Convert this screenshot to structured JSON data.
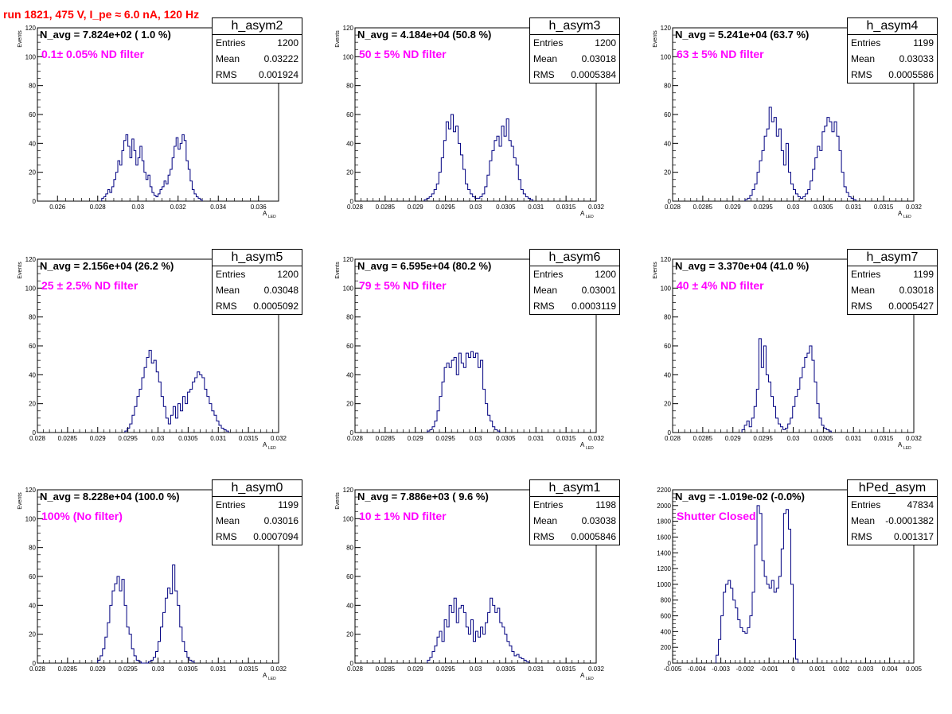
{
  "title": "run 1821,   475 V, I_pe ≈ 6.0 nA, 120 Hz",
  "colors": {
    "title": "#ff0000",
    "hist": "#000080",
    "filter_label": "#ff00ff"
  },
  "stats_labels": {
    "entries": "Entries",
    "mean": "Mean",
    "rms": "RMS"
  },
  "chart_data": [
    {
      "type": "histogram",
      "name": "h_asym2",
      "navg": "N_avg = 7.824e+02 ( 1.0 %)",
      "filter": "0.1± 0.05% ND filter",
      "stats": {
        "entries": "1200",
        "mean": "0.03222",
        "rms": "0.001924"
      },
      "xlabel": "A",
      "xlabel_sub": "LED",
      "ylabel": "Events",
      "xlim": [
        0.025,
        0.037
      ],
      "ylim": [
        0,
        120
      ],
      "xticks": [
        0.026,
        0.028,
        0.03,
        0.032,
        0.034,
        0.036
      ],
      "xtick_labels": [
        "0.026",
        "0.028",
        "0.03",
        "0.032",
        "0.034",
        "0.036"
      ],
      "yticks": [
        0,
        20,
        40,
        60,
        80,
        100,
        120
      ],
      "x0": 0.0282,
      "bin": 0.0001,
      "values": [
        2,
        3,
        5,
        8,
        6,
        10,
        15,
        20,
        28,
        25,
        35,
        42,
        46,
        38,
        30,
        43,
        35,
        25,
        30,
        38,
        28,
        20,
        15,
        18,
        10,
        6,
        4,
        3,
        5,
        8,
        10,
        14,
        12,
        18,
        22,
        30,
        38,
        44,
        36,
        40,
        46,
        42,
        28,
        22,
        14,
        8,
        5,
        3,
        2,
        1
      ]
    },
    {
      "type": "histogram",
      "name": "h_asym3",
      "navg": "N_avg = 4.184e+04 (50.8 %)",
      "filter": "50 ± 5% ND filter",
      "stats": {
        "entries": "1200",
        "mean": "0.03018",
        "rms": "0.0005384"
      },
      "xlabel": "A",
      "xlabel_sub": "LED",
      "ylabel": "Events",
      "xlim": [
        0.028,
        0.032
      ],
      "ylim": [
        0,
        120
      ],
      "xticks": [
        0.028,
        0.0285,
        0.029,
        0.0295,
        0.03,
        0.0305,
        0.031,
        0.0315,
        0.032
      ],
      "xtick_labels": [
        "0.028",
        "0.0285",
        "0.029",
        "0.0295",
        "0.03",
        "0.0305",
        "0.031",
        "0.0315",
        "0.032"
      ],
      "yticks": [
        0,
        20,
        40,
        60,
        80,
        100,
        120
      ],
      "x0": 0.02915,
      "bin": 4e-05,
      "values": [
        1,
        2,
        3,
        5,
        8,
        12,
        20,
        30,
        42,
        55,
        50,
        60,
        48,
        52,
        40,
        32,
        22,
        12,
        8,
        5,
        3,
        2,
        2,
        3,
        5,
        10,
        18,
        28,
        35,
        42,
        45,
        38,
        52,
        45,
        57,
        42,
        38,
        30,
        25,
        15,
        8,
        5,
        3,
        2,
        1
      ]
    },
    {
      "type": "histogram",
      "name": "h_asym4",
      "navg": "N_avg = 5.241e+04 (63.7 %)",
      "filter": "63 ± 5% ND filter",
      "stats": {
        "entries": "1199",
        "mean": "0.03033",
        "rms": "0.0005586"
      },
      "xlabel": "A",
      "xlabel_sub": "LED",
      "ylabel": "Events",
      "xlim": [
        0.028,
        0.032
      ],
      "ylim": [
        0,
        120
      ],
      "xticks": [
        0.028,
        0.0285,
        0.029,
        0.0295,
        0.03,
        0.0305,
        0.031,
        0.0315,
        0.032
      ],
      "xtick_labels": [
        "0.028",
        "0.0285",
        "0.029",
        "0.0295",
        "0.03",
        "0.0305",
        "0.031",
        "0.0315",
        "0.032"
      ],
      "yticks": [
        0,
        20,
        40,
        60,
        80,
        100,
        120
      ],
      "x0": 0.0292,
      "bin": 4e-05,
      "values": [
        1,
        2,
        4,
        8,
        12,
        20,
        28,
        35,
        45,
        50,
        65,
        55,
        58,
        45,
        50,
        35,
        25,
        40,
        20,
        12,
        8,
        5,
        3,
        2,
        3,
        5,
        8,
        14,
        22,
        30,
        38,
        35,
        48,
        52,
        58,
        55,
        48,
        55,
        45,
        35,
        20,
        10,
        6,
        3,
        2,
        1
      ]
    },
    {
      "type": "histogram",
      "name": "h_asym5",
      "navg": "N_avg = 2.156e+04 (26.2 %)",
      "filter": "25 ± 2.5% ND filter",
      "stats": {
        "entries": "1200",
        "mean": "0.03048",
        "rms": "0.0005092"
      },
      "xlabel": "A",
      "xlabel_sub": "LED",
      "ylabel": "Events",
      "xlim": [
        0.028,
        0.032
      ],
      "ylim": [
        0,
        120
      ],
      "xticks": [
        0.028,
        0.0285,
        0.029,
        0.0295,
        0.03,
        0.0305,
        0.031,
        0.0315,
        0.032
      ],
      "xtick_labels": [
        "0.028",
        "0.0285",
        "0.029",
        "0.0295",
        "0.03",
        "0.0305",
        "0.031",
        "0.0315",
        "0.032"
      ],
      "yticks": [
        0,
        20,
        40,
        60,
        80,
        100,
        120
      ],
      "x0": 0.02945,
      "bin": 4e-05,
      "values": [
        1,
        3,
        6,
        12,
        18,
        25,
        30,
        38,
        45,
        52,
        57,
        48,
        50,
        42,
        35,
        25,
        18,
        10,
        6,
        12,
        18,
        10,
        20,
        15,
        25,
        20,
        28,
        30,
        35,
        38,
        42,
        40,
        38,
        30,
        25,
        20,
        15,
        12,
        8,
        5,
        3,
        2,
        1
      ]
    },
    {
      "type": "histogram",
      "name": "h_asym6",
      "navg": "N_avg = 6.595e+04 (80.2 %)",
      "filter": "79 ± 5% ND filter",
      "stats": {
        "entries": "1200",
        "mean": "0.03001",
        "rms": "0.0003119"
      },
      "xlabel": "A",
      "xlabel_sub": "LED",
      "ylabel": "Events",
      "xlim": [
        0.028,
        0.032
      ],
      "ylim": [
        0,
        120
      ],
      "xticks": [
        0.028,
        0.0285,
        0.029,
        0.0295,
        0.03,
        0.0305,
        0.031,
        0.0315,
        0.032
      ],
      "xtick_labels": [
        "0.028",
        "0.0285",
        "0.029",
        "0.0295",
        "0.03",
        "0.0305",
        "0.031",
        "0.0315",
        "0.032"
      ],
      "yticks": [
        0,
        20,
        40,
        60,
        80,
        100,
        120
      ],
      "x0": 0.0292,
      "bin": 4e-05,
      "values": [
        1,
        2,
        4,
        8,
        15,
        25,
        35,
        45,
        48,
        45,
        50,
        52,
        40,
        55,
        48,
        45,
        55,
        52,
        56,
        52,
        55,
        45,
        50,
        30,
        20,
        12,
        8,
        4,
        2,
        1
      ]
    },
    {
      "type": "histogram",
      "name": "h_asym7",
      "navg": "N_avg = 3.370e+04 (41.0 %)",
      "filter": "40 ± 4% ND filter",
      "stats": {
        "entries": "1199",
        "mean": "0.03018",
        "rms": "0.0005427"
      },
      "xlabel": "A",
      "xlabel_sub": "LED",
      "ylabel": "Events",
      "xlim": [
        0.028,
        0.032
      ],
      "ylim": [
        0,
        120
      ],
      "xticks": [
        0.028,
        0.0285,
        0.029,
        0.0295,
        0.03,
        0.0305,
        0.031,
        0.0315,
        0.032
      ],
      "xtick_labels": [
        "0.028",
        "0.0285",
        "0.029",
        "0.0295",
        "0.03",
        "0.0305",
        "0.031",
        "0.0315",
        "0.032"
      ],
      "yticks": [
        0,
        20,
        40,
        60,
        80,
        100,
        120
      ],
      "x0": 0.02915,
      "bin": 4e-05,
      "values": [
        2,
        5,
        8,
        4,
        10,
        18,
        30,
        65,
        45,
        60,
        40,
        35,
        25,
        18,
        10,
        6,
        4,
        2,
        3,
        6,
        10,
        18,
        25,
        30,
        38,
        45,
        52,
        55,
        60,
        50,
        35,
        20,
        10,
        5,
        3,
        2,
        1
      ]
    },
    {
      "type": "histogram",
      "name": "h_asym0",
      "navg": "N_avg = 8.228e+04 (100.0 %)",
      "filter": "100% (No filter)",
      "stats": {
        "entries": "1199",
        "mean": "0.03016",
        "rms": "0.0007094"
      },
      "xlabel": "A",
      "xlabel_sub": "LED",
      "ylabel": "Events",
      "xlim": [
        0.028,
        0.032
      ],
      "ylim": [
        0,
        120
      ],
      "xticks": [
        0.028,
        0.0285,
        0.029,
        0.0295,
        0.03,
        0.0305,
        0.031,
        0.0315,
        0.032
      ],
      "xtick_labels": [
        "0.028",
        "0.0285",
        "0.029",
        "0.0295",
        "0.03",
        "0.0305",
        "0.031",
        "0.0315",
        "0.032"
      ],
      "yticks": [
        0,
        20,
        40,
        60,
        80,
        100,
        120
      ],
      "x0": 0.029,
      "bin": 4e-05,
      "values": [
        2,
        5,
        10,
        18,
        28,
        40,
        50,
        55,
        60,
        50,
        58,
        40,
        25,
        20,
        10,
        5,
        2,
        1,
        0,
        0,
        0,
        1,
        2,
        4,
        8,
        15,
        25,
        35,
        45,
        52,
        48,
        68,
        50,
        40,
        25,
        15,
        8,
        4,
        2,
        1
      ]
    },
    {
      "type": "histogram",
      "name": "h_asym1",
      "navg": "N_avg = 7.886e+03 ( 9.6 %)",
      "filter": "10 ± 1% ND filter",
      "stats": {
        "entries": "1198",
        "mean": "0.03038",
        "rms": "0.0005846"
      },
      "xlabel": "A",
      "xlabel_sub": "LED",
      "ylabel": "Events",
      "xlim": [
        0.028,
        0.032
      ],
      "ylim": [
        0,
        120
      ],
      "xticks": [
        0.028,
        0.0285,
        0.029,
        0.0295,
        0.03,
        0.0305,
        0.031,
        0.0315,
        0.032
      ],
      "xtick_labels": [
        "0.028",
        "0.0285",
        "0.029",
        "0.0295",
        "0.03",
        "0.0305",
        "0.031",
        "0.0315",
        "0.032"
      ],
      "yticks": [
        0,
        20,
        40,
        60,
        80,
        100,
        120
      ],
      "x0": 0.0292,
      "bin": 4e-05,
      "values": [
        2,
        4,
        8,
        12,
        18,
        22,
        15,
        30,
        25,
        40,
        35,
        45,
        28,
        38,
        40,
        35,
        25,
        20,
        30,
        15,
        22,
        18,
        25,
        20,
        28,
        35,
        45,
        40,
        35,
        38,
        28,
        25,
        20,
        15,
        12,
        8,
        5,
        6,
        4,
        3,
        2,
        1
      ]
    },
    {
      "type": "histogram",
      "name": "hPed_asym",
      "navg": "N_avg = -1.019e-02 (-0.0%)",
      "filter": "Shutter Closed",
      "stats": {
        "entries": "47834",
        "mean": "-0.0001382",
        "rms": "0.001317"
      },
      "xlabel": "",
      "xlabel_sub": "",
      "ylabel": "",
      "xlim": [
        -0.005,
        0.005
      ],
      "ylim": [
        0,
        2200
      ],
      "xticks": [
        -0.005,
        -0.004,
        -0.003,
        -0.002,
        -0.001,
        0,
        0.001,
        0.002,
        0.003,
        0.004,
        0.005
      ],
      "xtick_labels": [
        "-0.005",
        "-0.004",
        "-0.003",
        "-0.002",
        "-0.001",
        "0",
        "0.001",
        "0.002",
        "0.003",
        "0.004",
        "0.005"
      ],
      "yticks": [
        0,
        200,
        400,
        600,
        800,
        1000,
        1200,
        1400,
        1600,
        1800,
        2000,
        2200
      ],
      "x0": -0.0032,
      "bin": 0.0001,
      "values": [
        100,
        300,
        600,
        900,
        1000,
        1050,
        950,
        800,
        700,
        550,
        450,
        400,
        380,
        450,
        600,
        900,
        1500,
        2000,
        1900,
        1300,
        1100,
        1000,
        950,
        1050,
        900,
        950,
        1100,
        1450,
        1900,
        1950,
        1700,
        1000,
        300,
        50
      ]
    }
  ]
}
